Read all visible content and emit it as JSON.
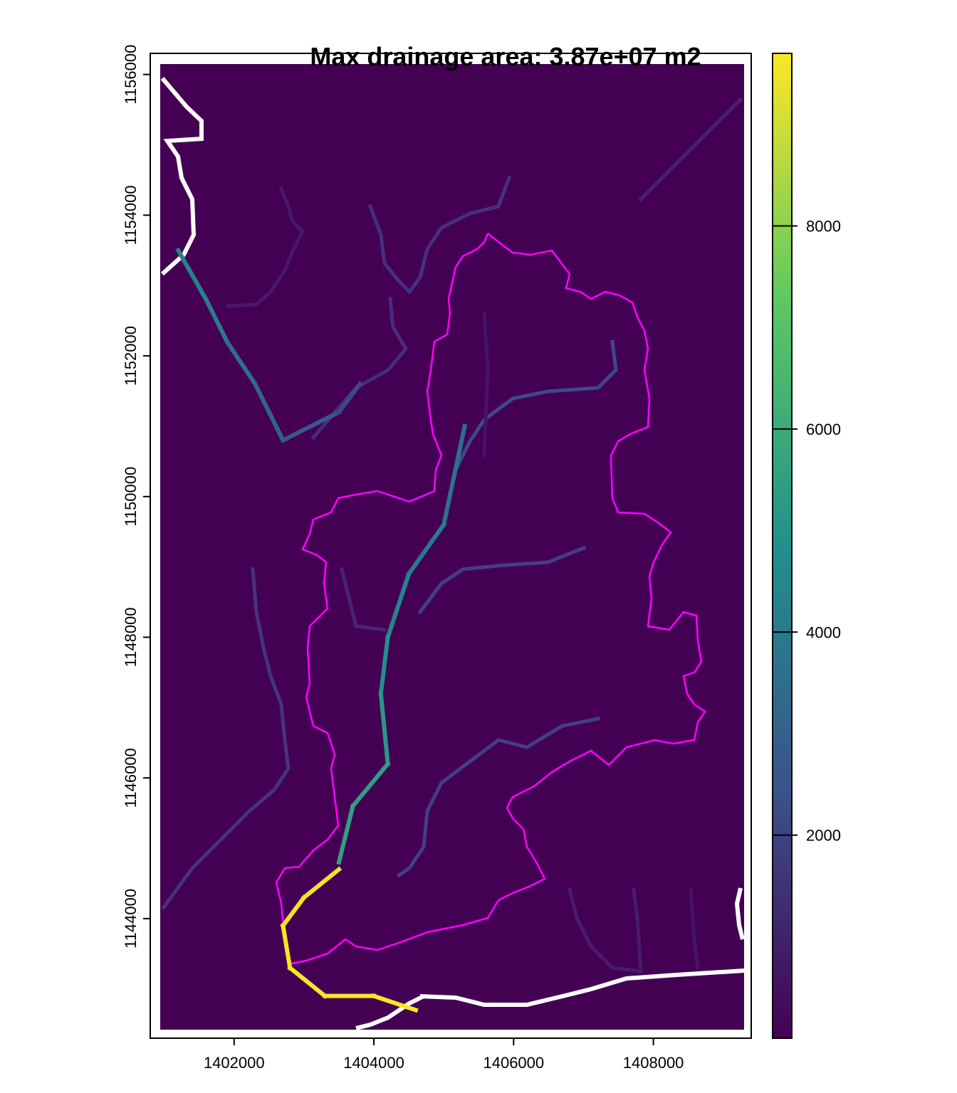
{
  "chart_data": {
    "type": "heatmap",
    "title": "Max drainage area: 3.87e+07 m2",
    "xlabel": "",
    "ylabel": "",
    "x_ticks": [
      1402000,
      1404000,
      1406000,
      1408000
    ],
    "x_tick_labels": [
      "1402000",
      "1404000",
      "1406000",
      "1408000"
    ],
    "y_ticks": [
      1144000,
      1146000,
      1148000,
      1150000,
      1152000,
      1154000,
      1156000
    ],
    "y_tick_labels": [
      "1144000",
      "1146000",
      "1148000",
      "1150000",
      "1152000",
      "1154000",
      "1156000"
    ],
    "xlim": [
      1400800,
      1409400
    ],
    "ylim": [
      1142300,
      1156300
    ],
    "colorbar": {
      "range": [
        0,
        9700
      ],
      "ticks": [
        2000,
        4000,
        6000,
        8000
      ],
      "tick_labels": [
        "2000",
        "4000",
        "6000",
        "8000"
      ],
      "palette": [
        "#440154",
        "#3b528b",
        "#21908c",
        "#5dc863",
        "#fde725"
      ]
    },
    "background_color": "#440154",
    "watershed_outline_color": "#ff00ff",
    "main_channel": [
      {
        "x": 1401200,
        "y": 1153500,
        "v": 4500
      },
      {
        "x": 1401600,
        "y": 1152800,
        "v": 4200
      },
      {
        "x": 1401900,
        "y": 1152200,
        "v": 3800
      },
      {
        "x": 1402300,
        "y": 1151600,
        "v": 3300
      },
      {
        "x": 1402700,
        "y": 1150800,
        "v": 3000
      },
      {
        "x": 1403500,
        "y": 1151200,
        "v": 2300
      },
      {
        "x": 1403800,
        "y": 1151600,
        "v": 2000
      }
    ],
    "trunk_channel": [
      {
        "x": 1405300,
        "y": 1151000,
        "v": 3500
      },
      {
        "x": 1405000,
        "y": 1149600,
        "v": 3800
      },
      {
        "x": 1404500,
        "y": 1148900,
        "v": 4200
      },
      {
        "x": 1404200,
        "y": 1148000,
        "v": 4600
      },
      {
        "x": 1404100,
        "y": 1147200,
        "v": 5000
      },
      {
        "x": 1404200,
        "y": 1146200,
        "v": 5300
      },
      {
        "x": 1403700,
        "y": 1145600,
        "v": 5500
      },
      {
        "x": 1403500,
        "y": 1144800,
        "v": 5600
      }
    ],
    "outlet_channel": [
      {
        "x": 1403500,
        "y": 1144700,
        "v": 9400
      },
      {
        "x": 1403000,
        "y": 1144300,
        "v": 9500
      },
      {
        "x": 1402700,
        "y": 1143900,
        "v": 9600
      },
      {
        "x": 1402800,
        "y": 1143300,
        "v": 9650
      },
      {
        "x": 1403300,
        "y": 1142900,
        "v": 9680
      },
      {
        "x": 1404000,
        "y": 1142900,
        "v": 9700
      },
      {
        "x": 1404600,
        "y": 1142700,
        "v": 9700
      }
    ]
  }
}
